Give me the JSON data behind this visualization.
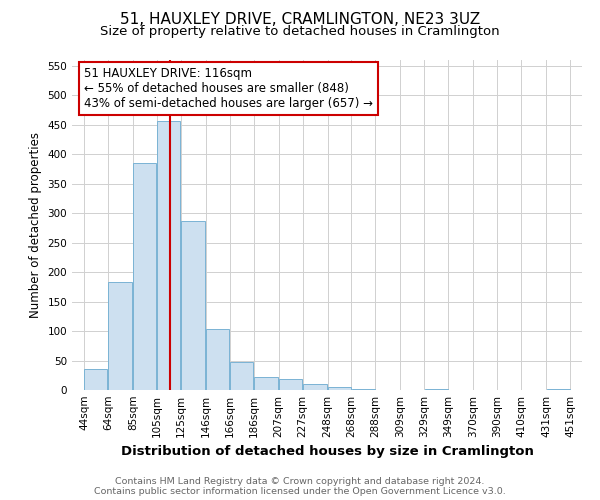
{
  "title": "51, HAUXLEY DRIVE, CRAMLINGTON, NE23 3UZ",
  "subtitle": "Size of property relative to detached houses in Cramlington",
  "xlabel": "Distribution of detached houses by size in Cramlington",
  "ylabel": "Number of detached properties",
  "bar_left_edges": [
    44,
    64,
    85,
    105,
    125,
    146,
    166,
    186,
    207,
    227,
    248,
    268,
    288,
    309,
    329,
    349,
    370,
    390,
    410,
    431
  ],
  "bar_widths": [
    20,
    21,
    20,
    20,
    21,
    20,
    20,
    21,
    20,
    21,
    20,
    20,
    21,
    20,
    20,
    21,
    20,
    20,
    21,
    20
  ],
  "bar_heights": [
    35,
    183,
    385,
    457,
    287,
    104,
    48,
    22,
    18,
    10,
    5,
    1,
    0,
    0,
    1,
    0,
    0,
    0,
    0,
    1
  ],
  "bar_color": "#cde0f0",
  "bar_edge_color": "#7ab3d4",
  "vline_x": 116,
  "vline_color": "#cc0000",
  "annotation_line1": "51 HAUXLEY DRIVE: 116sqm",
  "annotation_line2": "← 55% of detached houses are smaller (848)",
  "annotation_line3": "43% of semi-detached houses are larger (657) →",
  "annotation_box_color": "#cc0000",
  "ylim": [
    0,
    560
  ],
  "yticks": [
    0,
    50,
    100,
    150,
    200,
    250,
    300,
    350,
    400,
    450,
    500,
    550
  ],
  "x_tick_labels": [
    "44sqm",
    "64sqm",
    "85sqm",
    "105sqm",
    "125sqm",
    "146sqm",
    "166sqm",
    "186sqm",
    "207sqm",
    "227sqm",
    "248sqm",
    "268sqm",
    "288sqm",
    "309sqm",
    "329sqm",
    "349sqm",
    "370sqm",
    "390sqm",
    "410sqm",
    "431sqm",
    "451sqm"
  ],
  "x_tick_positions": [
    44,
    64,
    85,
    105,
    125,
    146,
    166,
    186,
    207,
    227,
    248,
    268,
    288,
    309,
    329,
    349,
    370,
    390,
    410,
    431,
    451
  ],
  "xlim": [
    34,
    461
  ],
  "footer_line1": "Contains HM Land Registry data © Crown copyright and database right 2024.",
  "footer_line2": "Contains public sector information licensed under the Open Government Licence v3.0.",
  "bg_color": "#ffffff",
  "grid_color": "#d0d0d0",
  "title_fontsize": 11,
  "subtitle_fontsize": 9.5,
  "ylabel_fontsize": 8.5,
  "xlabel_fontsize": 9.5,
  "tick_fontsize": 7.5,
  "annotation_fontsize": 8.5,
  "footer_fontsize": 6.8
}
